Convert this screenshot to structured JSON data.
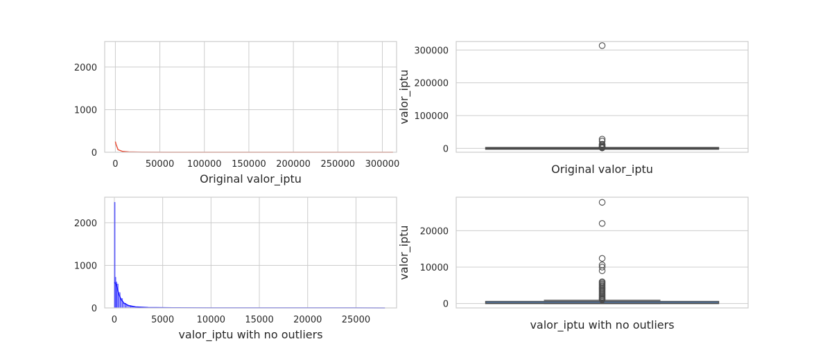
{
  "chart_data": [
    {
      "type": "histogram",
      "xlabel": "Original valor_iptu",
      "ylabel": "",
      "xlim": [
        -12000,
        316000
      ],
      "ylim": [
        0,
        2600
      ],
      "xticks": [
        0,
        50000,
        100000,
        150000,
        200000,
        250000,
        300000
      ],
      "xtick_labels": [
        "0",
        "50000",
        "100000",
        "150000",
        "200000",
        "250000",
        "300000"
      ],
      "yticks": [
        0,
        1000,
        2000
      ],
      "ytick_labels": [
        "0",
        "1000",
        "2000"
      ],
      "grid": true,
      "color": "#e8503a",
      "kde": [
        [
          0,
          250
        ],
        [
          800,
          180
        ],
        [
          3000,
          60
        ],
        [
          8000,
          20
        ],
        [
          15000,
          8
        ],
        [
          30000,
          3
        ],
        [
          60000,
          1
        ],
        [
          150000,
          0.5
        ],
        [
          312000,
          0.5
        ]
      ],
      "bins": []
    },
    {
      "type": "box",
      "xlabel": "Original valor_iptu",
      "ylabel": "valor_iptu",
      "ylim": [
        -12000,
        326000
      ],
      "yticks": [
        0,
        100000,
        200000,
        300000
      ],
      "ytick_labels": [
        "0",
        "100000",
        "200000",
        "300000"
      ],
      "grid": true,
      "color": "#4a4a4a",
      "box": {
        "q1": 0,
        "median": 150,
        "q3": 400,
        "whisker_low": 0,
        "whisker_high": 900
      },
      "outliers": [
        313500,
        27800,
        22000,
        12500,
        10200,
        9000,
        6000,
        5000,
        4000,
        3000,
        2500,
        2000,
        1500,
        1200
      ]
    },
    {
      "type": "histogram",
      "xlabel": "valor_iptu with no outliers",
      "ylabel": "",
      "xlim": [
        -1000,
        29200
      ],
      "ylim": [
        0,
        2600
      ],
      "xticks": [
        0,
        5000,
        10000,
        15000,
        20000,
        25000
      ],
      "xtick_labels": [
        "0",
        "5000",
        "10000",
        "15000",
        "20000",
        "25000"
      ],
      "yticks": [
        0,
        1000,
        2000
      ],
      "ytick_labels": [
        "0",
        "1000",
        "2000"
      ],
      "grid": true,
      "color": "#1a1aff",
      "bins": [
        {
          "x0": 0,
          "x1": 80,
          "count": 2480
        },
        {
          "x0": 80,
          "x1": 160,
          "count": 720
        },
        {
          "x0": 160,
          "x1": 260,
          "count": 610
        },
        {
          "x0": 260,
          "x1": 400,
          "count": 560
        },
        {
          "x0": 400,
          "x1": 600,
          "count": 360
        },
        {
          "x0": 600,
          "x1": 850,
          "count": 220
        },
        {
          "x0": 850,
          "x1": 1200,
          "count": 110
        },
        {
          "x0": 1200,
          "x1": 1700,
          "count": 55
        },
        {
          "x0": 1700,
          "x1": 2500,
          "count": 25
        },
        {
          "x0": 2500,
          "x1": 4000,
          "count": 10
        },
        {
          "x0": 4000,
          "x1": 6000,
          "count": 4
        }
      ],
      "kde": [
        [
          0,
          600
        ],
        [
          200,
          560
        ],
        [
          450,
          330
        ],
        [
          700,
          200
        ],
        [
          1000,
          110
        ],
        [
          1500,
          55
        ],
        [
          2200,
          25
        ],
        [
          3500,
          10
        ],
        [
          6000,
          4
        ],
        [
          10000,
          2
        ],
        [
          28000,
          1
        ]
      ]
    },
    {
      "type": "box",
      "xlabel": "valor_iptu with no outliers",
      "ylabel": "valor_iptu",
      "ylim": [
        -1200,
        29200
      ],
      "yticks": [
        0,
        10000,
        20000
      ],
      "ytick_labels": [
        "0",
        "10000",
        "20000"
      ],
      "grid": true,
      "color": "#4a4a4a",
      "box": {
        "q1": 0,
        "median": 150,
        "q3": 400,
        "whisker_low": 0,
        "whisker_high": 900
      },
      "outliers": [
        27800,
        22000,
        12400,
        10600,
        10000,
        9000,
        6000,
        5700,
        5400,
        5100,
        4800,
        4500,
        4200,
        3900,
        3600,
        3300,
        3000,
        2700,
        2400,
        2100,
        1800,
        1500,
        1250,
        1050
      ]
    }
  ]
}
